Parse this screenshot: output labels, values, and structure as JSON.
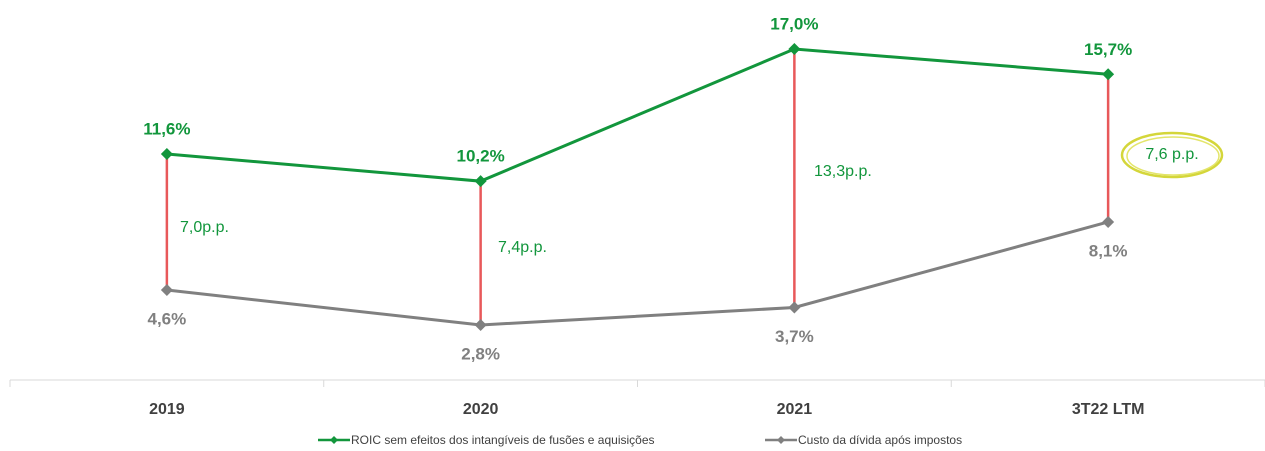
{
  "chart_data": {
    "type": "line",
    "categories": [
      "2019",
      "2020",
      "2021",
      "3T22 LTM"
    ],
    "series": [
      {
        "name": "ROIC sem efeitos dos intangíveis de fusões e aquisições",
        "color": "#12963c",
        "values": [
          11.6,
          10.2,
          17.0,
          15.7
        ],
        "value_labels": [
          "11,6%",
          "10,2%",
          "17,0%",
          "15,7%"
        ]
      },
      {
        "name": "Custo da dívida após impostos",
        "color": "#808080",
        "values": [
          4.6,
          2.8,
          3.7,
          8.1
        ],
        "value_labels": [
          "4,6%",
          "2,8%",
          "3,7%",
          "8,1%"
        ]
      }
    ],
    "spread_color": "#e8585a",
    "spread_labels": [
      "7,0p.p.",
      "7,4p.p.",
      "13,3p.p.",
      "7,6 p.p."
    ]
  }
}
